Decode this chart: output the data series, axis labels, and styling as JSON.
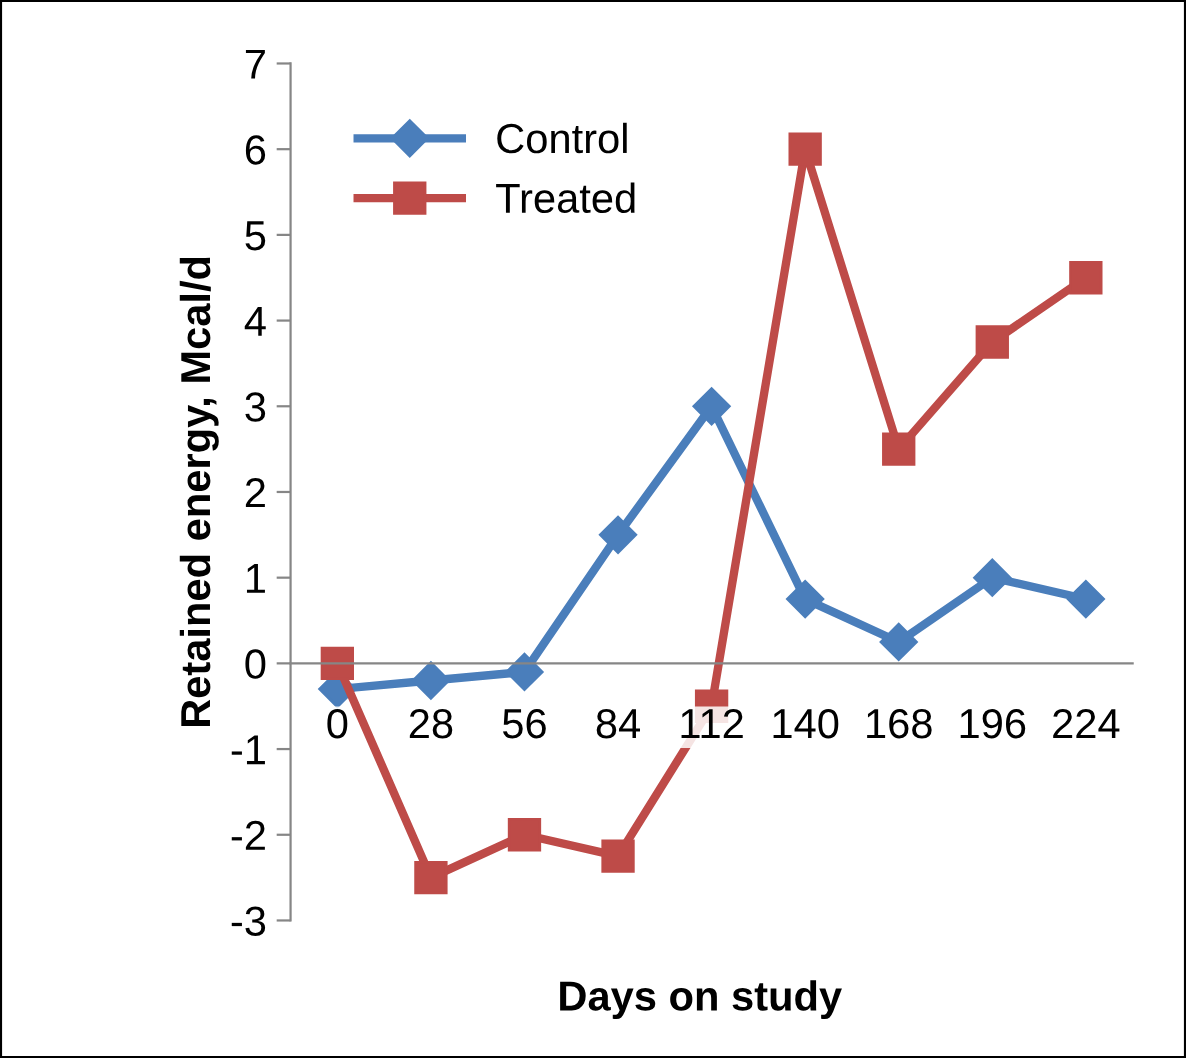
{
  "chart_data": {
    "type": "line",
    "xlabel": "Days on study",
    "ylabel": "Retained energy, Mcal/d",
    "categories": [
      "0",
      "28",
      "56",
      "84",
      "112",
      "140",
      "168",
      "196",
      "224"
    ],
    "series": [
      {
        "name": "Control",
        "color": "#4a7ebb",
        "marker": "diamond",
        "values": [
          -0.3,
          -0.2,
          -0.1,
          1.5,
          3.0,
          0.75,
          0.25,
          1.0,
          0.75
        ]
      },
      {
        "name": "Treated",
        "color": "#be4b48",
        "marker": "square",
        "values": [
          0,
          -2.5,
          -2.0,
          -2.25,
          -0.5,
          6.0,
          2.5,
          3.75,
          4.5
        ]
      }
    ],
    "ylim": [
      -3,
      7
    ],
    "yticks": [
      -3,
      -2,
      -1,
      0,
      1,
      2,
      3,
      4,
      5,
      6,
      7
    ],
    "grid": false,
    "legend": "top left",
    "line_style": "solid"
  }
}
